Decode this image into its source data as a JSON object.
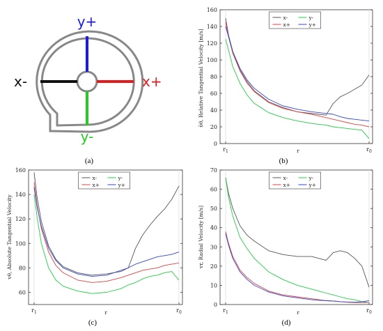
{
  "panel_labels": [
    "(a)",
    "(b)",
    "(c)",
    "(d)"
  ],
  "schematic": {
    "labels": {
      "y_plus": "y+",
      "y_minus": "y-",
      "x_plus": "x+",
      "x_minus": "x-"
    },
    "colors": {
      "y_plus": "#1a1ae6",
      "y_minus": "#22cc22",
      "x_plus": "#e61a1a",
      "x_minus": "#111111",
      "outline": "#888888"
    }
  },
  "series_colors": {
    "x-": "#555555",
    "y-": "#22cc44",
    "x+": "#e04040",
    "y+": "#3344cc"
  },
  "chart_data": [
    {
      "panel": "(b)",
      "type": "line",
      "ylabel": "ῡθ, Relative Tangential Velocity [m/s]",
      "xlabel": "r",
      "x_ticks": [
        "r1",
        "r0"
      ],
      "ylim": [
        0,
        160
      ],
      "y_ticks": [
        0,
        20,
        40,
        60,
        80,
        100,
        120,
        140,
        160
      ],
      "legend": "top-center",
      "x": [
        0,
        0.02,
        0.05,
        0.1,
        0.15,
        0.2,
        0.3,
        0.4,
        0.5,
        0.6,
        0.65,
        0.7,
        0.75,
        0.8,
        0.85,
        0.9,
        0.95,
        1.0
      ],
      "series": [
        {
          "name": "x-",
          "values": [
            150,
            130,
            110,
            88,
            74,
            63,
            50,
            43,
            38,
            36,
            35,
            34,
            48,
            56,
            60,
            65,
            70,
            82
          ]
        },
        {
          "name": "y-",
          "values": [
            125,
            112,
            92,
            72,
            58,
            48,
            37,
            31,
            27,
            24,
            23,
            22,
            20,
            19,
            18,
            17,
            16,
            6
          ]
        },
        {
          "name": "x+",
          "values": [
            145,
            128,
            108,
            87,
            72,
            62,
            49,
            42,
            38,
            35,
            33,
            31,
            29,
            27,
            25,
            23,
            22,
            20
          ]
        },
        {
          "name": "y+",
          "values": [
            140,
            128,
            110,
            90,
            76,
            66,
            53,
            45,
            41,
            38,
            37,
            36,
            35,
            32,
            30,
            29,
            28,
            27
          ]
        }
      ]
    },
    {
      "panel": "(c)",
      "type": "line",
      "ylabel": "vθ, Absolute Tangential Velocity",
      "xlabel": "r",
      "x_ticks": [
        "r1",
        "r0"
      ],
      "ylim": [
        50,
        160
      ],
      "y_ticks": [
        60,
        80,
        100,
        120,
        140,
        160
      ],
      "legend": "top-center",
      "x": [
        0,
        0.02,
        0.05,
        0.1,
        0.15,
        0.2,
        0.3,
        0.4,
        0.5,
        0.6,
        0.65,
        0.7,
        0.75,
        0.8,
        0.85,
        0.9,
        0.95,
        1.0
      ],
      "series": [
        {
          "name": "x-",
          "values": [
            158,
            138,
            118,
            98,
            87,
            81,
            76,
            74,
            75,
            77,
            80,
            96,
            107,
            115,
            122,
            128,
            136,
            147
          ]
        },
        {
          "name": "y-",
          "values": [
            140,
            122,
            100,
            80,
            70,
            65,
            61,
            59,
            60,
            63,
            66,
            68,
            71,
            73,
            74,
            76,
            77,
            70
          ]
        },
        {
          "name": "x+",
          "values": [
            150,
            132,
            112,
            93,
            82,
            76,
            70,
            68,
            69,
            72,
            74,
            76,
            78,
            79,
            80,
            82,
            83,
            84
          ]
        },
        {
          "name": "y+",
          "values": [
            146,
            130,
            114,
            96,
            86,
            80,
            75,
            73,
            74,
            78,
            80,
            83,
            85,
            87,
            89,
            90,
            91,
            93
          ]
        }
      ]
    },
    {
      "panel": "(d)",
      "type": "line",
      "ylabel": "vr, Radial Velocity [m/s]",
      "xlabel": "r",
      "x_ticks": [
        "r1",
        "r0"
      ],
      "ylim": [
        0,
        70
      ],
      "y_ticks": [
        0,
        10,
        20,
        30,
        40,
        50,
        60,
        70
      ],
      "legend": "top-center",
      "x": [
        0,
        0.02,
        0.05,
        0.1,
        0.15,
        0.2,
        0.3,
        0.4,
        0.5,
        0.6,
        0.65,
        0.7,
        0.75,
        0.8,
        0.85,
        0.9,
        0.95,
        1.0
      ],
      "series": [
        {
          "name": "x-",
          "values": [
            66,
            58,
            50,
            41,
            36,
            33,
            28,
            26,
            25,
            25,
            24,
            23,
            27,
            28,
            27,
            24,
            20,
            9
          ]
        },
        {
          "name": "y-",
          "values": [
            66,
            56,
            46,
            35,
            29,
            24,
            17,
            13,
            10,
            8,
            7,
            6,
            5,
            4,
            3,
            2.5,
            1.5,
            1
          ]
        },
        {
          "name": "x+",
          "values": [
            38,
            32,
            25,
            18,
            14,
            11,
            7,
            5,
            4,
            3,
            2.5,
            2,
            1.8,
            1.5,
            1.2,
            1,
            1,
            1
          ]
        },
        {
          "name": "y+",
          "values": [
            37,
            31,
            24,
            17,
            13,
            10,
            6.5,
            4.5,
            3.5,
            2.5,
            2.2,
            2,
            1.8,
            1.5,
            1.3,
            1.2,
            1.5,
            2
          ]
        }
      ]
    }
  ]
}
